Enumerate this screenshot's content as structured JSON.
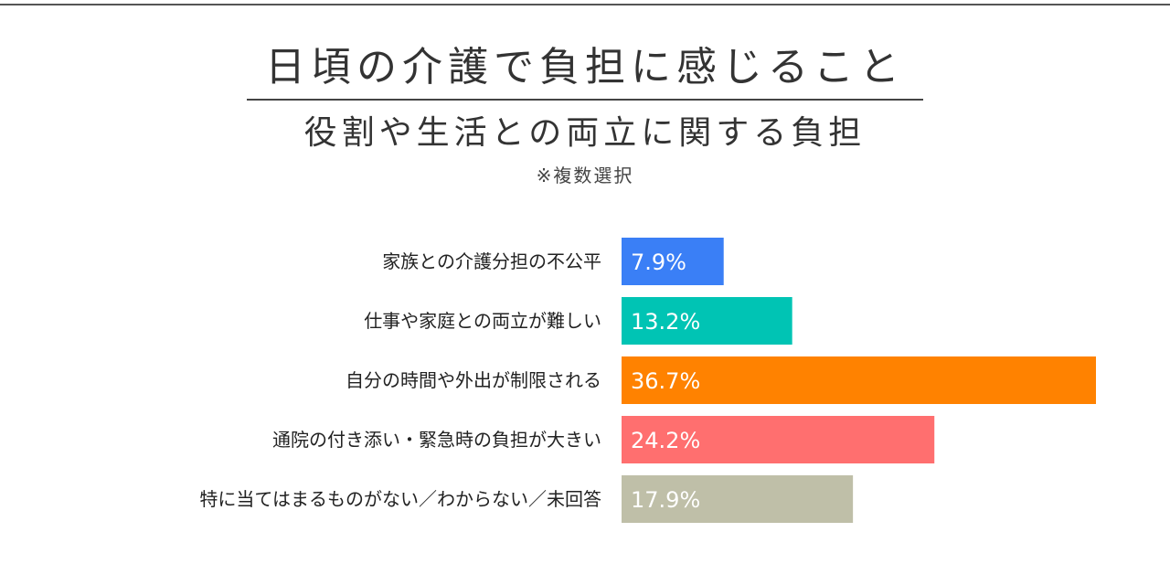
{
  "title": "日頃の介護で負担に感じること",
  "subtitle": "役割や生活との両立に関する負担",
  "note": "※複数選択",
  "chart_data": {
    "type": "bar",
    "orientation": "horizontal",
    "categories": [
      "家族との介護分担の不公平",
      "仕事や家庭との両立が難しい",
      "自分の時間や外出が制限される",
      "通院の付き添い・緊急時の負担が大きい",
      "特に当てはまるものがない／わからない／未回答"
    ],
    "values": [
      7.9,
      13.2,
      36.7,
      24.2,
      17.9
    ],
    "value_labels": [
      "7.9%",
      "13.2%",
      "36.7%",
      "24.2%",
      "17.9%"
    ],
    "colors": [
      "#3a7ff6",
      "#00c4b4",
      "#ff8200",
      "#ff6f6f",
      "#bfbfa8"
    ],
    "xlim": [
      0,
      36.7
    ],
    "grid": false,
    "legend": false
  }
}
